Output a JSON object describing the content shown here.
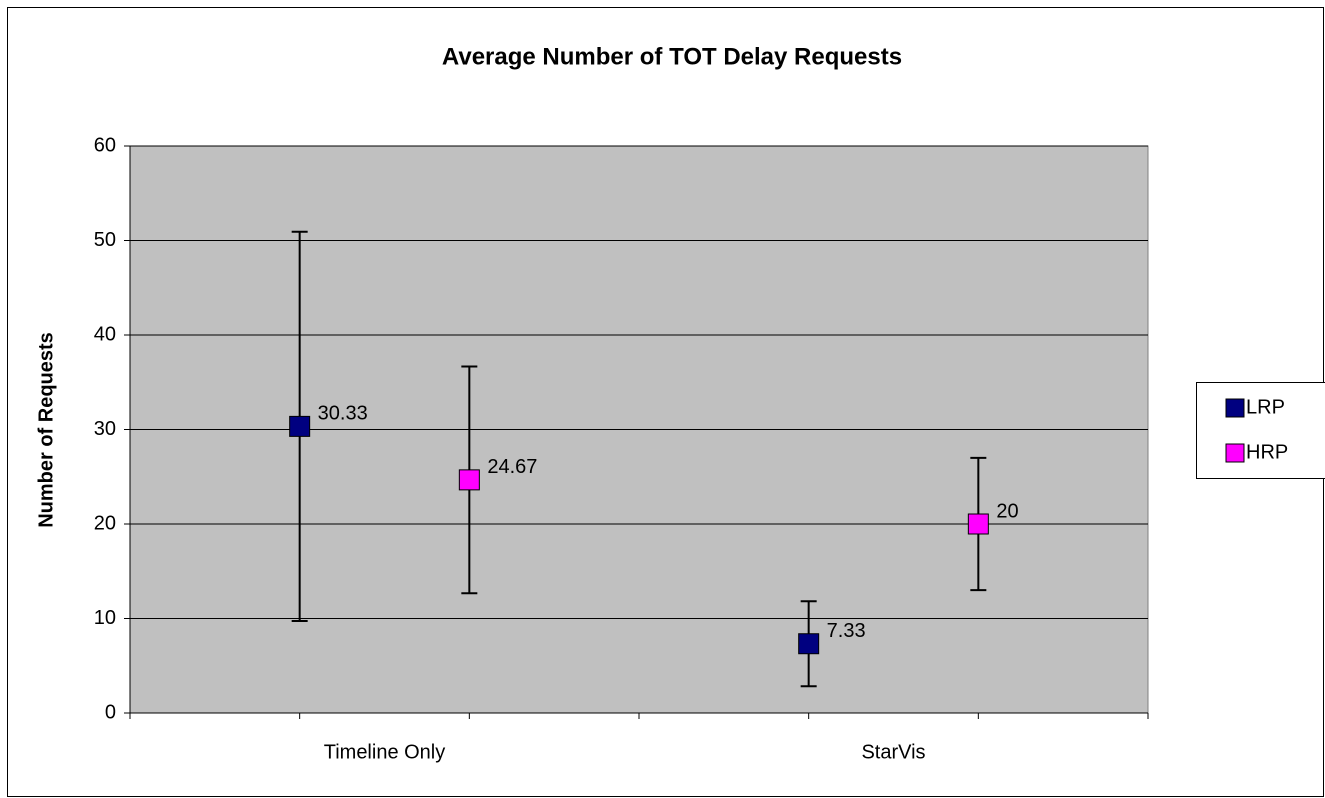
{
  "chart_data": {
    "type": "errorbar",
    "title": "Average Number of TOT Delay Requests",
    "y_label": "Number of Requests",
    "categories": [
      "Timeline Only",
      "StarVis"
    ],
    "series": [
      {
        "name": "LRP",
        "color": "#000080",
        "values": [
          30.33,
          7.33
        ],
        "errors": [
          20.6,
          4.5
        ]
      },
      {
        "name": "HRP",
        "color": "#ff00ff",
        "values": [
          24.67,
          20
        ],
        "errors": [
          12,
          7
        ]
      }
    ],
    "ylim": [
      0,
      60
    ],
    "yticks": [
      0,
      10,
      20,
      30,
      40,
      50,
      60
    ],
    "grid": true,
    "legend": "right"
  }
}
